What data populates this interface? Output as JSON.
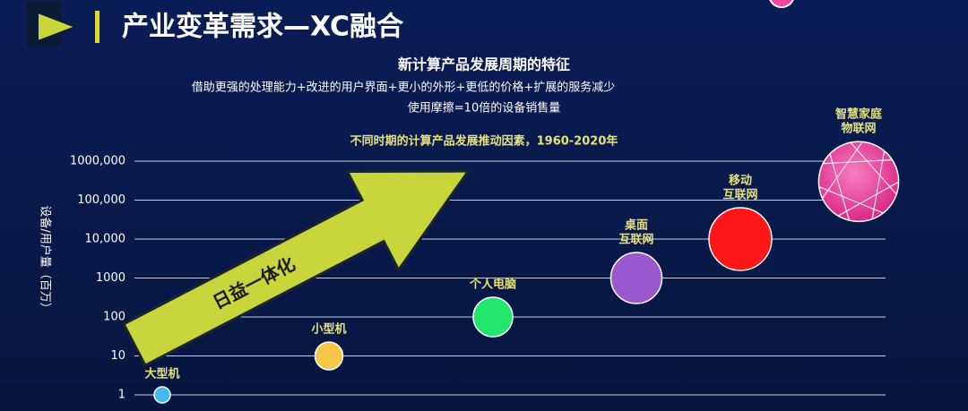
{
  "header": {
    "title": "产业变革需求—XC融合"
  },
  "chart_data": {
    "type": "bubble",
    "title": "新计算产品发展周期的特征",
    "subtitle": [
      "借助更强的处理能力+改进的用户界面+更小的外形+更低的价格+扩展的服务减少",
      "使用摩擦=10倍的设备销售量"
    ],
    "annotation": "不同时期的计算产品发展推动因素，1960-2020年",
    "arrow_label": "日益一体化",
    "y_label": "设备/用户量（百万）",
    "categories": [
      [
        "大型机"
      ],
      [
        "小型机"
      ],
      [
        "个人电脑"
      ],
      [
        "桌面",
        "互联网"
      ],
      [
        "移动",
        "互联网"
      ],
      [
        "智慧家庭",
        "物联网"
      ]
    ],
    "values": [
      1,
      10,
      100,
      1000,
      10000,
      300000
    ],
    "colors": [
      "#45b8f2",
      "#f6c646",
      "#22e56b",
      "#9a58cf",
      "#ff1616",
      "#f0459f"
    ],
    "log_scale": true,
    "ylim": [
      1,
      1000000
    ],
    "yticks": [
      1,
      10,
      100,
      1000,
      {
        "value": 10000,
        "label": "10,000"
      },
      {
        "value": 100000,
        "label": "100,000"
      },
      {
        "value": 1000000,
        "label": "1000,000"
      }
    ],
    "grid": true
  }
}
